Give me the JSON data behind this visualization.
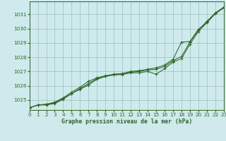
{
  "title": "Graphe pression niveau de la mer (hPa)",
  "bg_color": "#ceeaec",
  "grid_color": "#9bbfbf",
  "line_color": "#2d6626",
  "x_min": 0,
  "x_max": 23,
  "y_min": 1024.3,
  "y_max": 1031.9,
  "yticks": [
    1025,
    1026,
    1027,
    1028,
    1029,
    1030,
    1031
  ],
  "xticks": [
    0,
    1,
    2,
    3,
    4,
    5,
    6,
    7,
    8,
    9,
    10,
    11,
    12,
    13,
    14,
    15,
    16,
    17,
    18,
    19,
    20,
    21,
    22,
    23
  ],
  "series1": [
    1024.45,
    1024.65,
    1024.65,
    1024.75,
    1025.05,
    1025.45,
    1025.75,
    1026.05,
    1026.45,
    1026.65,
    1026.75,
    1026.78,
    1026.9,
    1026.9,
    1027.0,
    1026.8,
    1027.2,
    1027.65,
    1027.9,
    1028.9,
    1029.8,
    1030.4,
    1031.05,
    1031.45
  ],
  "series2": [
    1024.45,
    1024.65,
    1024.7,
    1024.85,
    1025.15,
    1025.55,
    1025.9,
    1026.3,
    1026.55,
    1026.7,
    1026.8,
    1026.85,
    1027.0,
    1027.05,
    1027.15,
    1027.25,
    1027.45,
    1027.85,
    1029.05,
    1029.1,
    1029.95,
    1030.45,
    1031.05,
    1031.45
  ],
  "series3": [
    1024.45,
    1024.65,
    1024.7,
    1024.8,
    1025.1,
    1025.45,
    1025.8,
    1026.15,
    1026.5,
    1026.65,
    1026.8,
    1026.83,
    1026.95,
    1027.0,
    1027.1,
    1027.15,
    1027.35,
    1027.75,
    1028.05,
    1029.05,
    1029.9,
    1030.5,
    1031.1,
    1031.5
  ]
}
